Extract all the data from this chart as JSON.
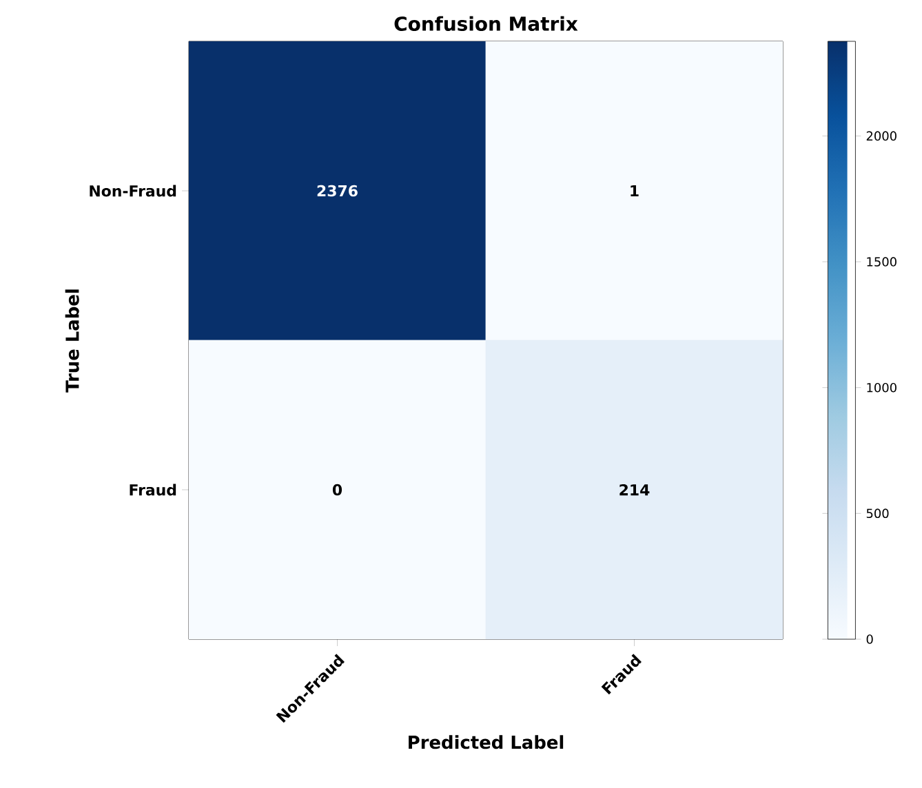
{
  "chart_data": {
    "type": "heatmap",
    "title": "Confusion Matrix",
    "xlabel": "Predicted Label",
    "ylabel": "True Label",
    "categories": [
      "Non-Fraud",
      "Fraud"
    ],
    "y_categories": [
      "Non-Fraud",
      "Fraud"
    ],
    "cells": [
      [
        2376,
        1
      ],
      [
        0,
        214
      ]
    ],
    "clim": [
      0,
      2376
    ],
    "cticks": [
      0,
      500,
      1000,
      1500,
      2000
    ],
    "data_labels": true
  }
}
